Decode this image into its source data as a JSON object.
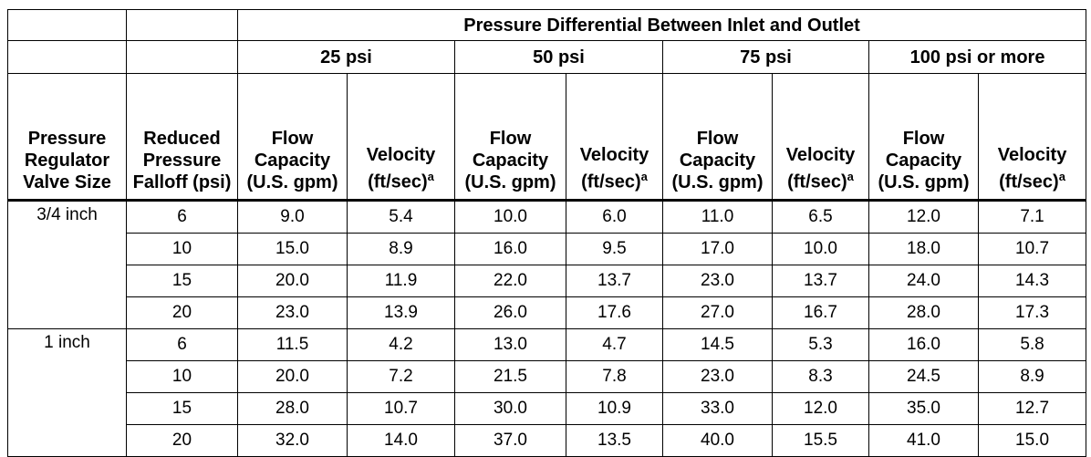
{
  "table": {
    "group_header": "Pressure Differential Between Inlet and Outlet",
    "pressures": [
      "25 psi",
      "50 psi",
      "75 psi",
      "100 psi or more"
    ],
    "column_headers": {
      "size": "Pressure Regulator Valve Size",
      "falloff": "Reduced Pressure Falloff (psi)",
      "flow": "Flow Capacity (U.S. gpm)",
      "velocity": "Velocity (ft/sec)",
      "velocity_note": "a"
    },
    "groups": [
      {
        "size": "3/4 inch",
        "rows": [
          [
            "6",
            "9.0",
            "5.4",
            "10.0",
            "6.0",
            "11.0",
            "6.5",
            "12.0",
            "7.1"
          ],
          [
            "10",
            "15.0",
            "8.9",
            "16.0",
            "9.5",
            "17.0",
            "10.0",
            "18.0",
            "10.7"
          ],
          [
            "15",
            "20.0",
            "11.9",
            "22.0",
            "13.7",
            "23.0",
            "13.7",
            "24.0",
            "14.3"
          ],
          [
            "20",
            "23.0",
            "13.9",
            "26.0",
            "17.6",
            "27.0",
            "16.7",
            "28.0",
            "17.3"
          ]
        ]
      },
      {
        "size": "1 inch",
        "rows": [
          [
            "6",
            "11.5",
            "4.2",
            "13.0",
            "4.7",
            "14.5",
            "5.3",
            "16.0",
            "5.8"
          ],
          [
            "10",
            "20.0",
            "7.2",
            "21.5",
            "7.8",
            "23.0",
            "8.3",
            "24.5",
            "8.9"
          ],
          [
            "15",
            "28.0",
            "10.7",
            "30.0",
            "10.9",
            "33.0",
            "12.0",
            "35.0",
            "12.7"
          ],
          [
            "20",
            "32.0",
            "14.0",
            "37.0",
            "13.5",
            "40.0",
            "15.5",
            "41.0",
            "15.0"
          ]
        ]
      }
    ]
  }
}
